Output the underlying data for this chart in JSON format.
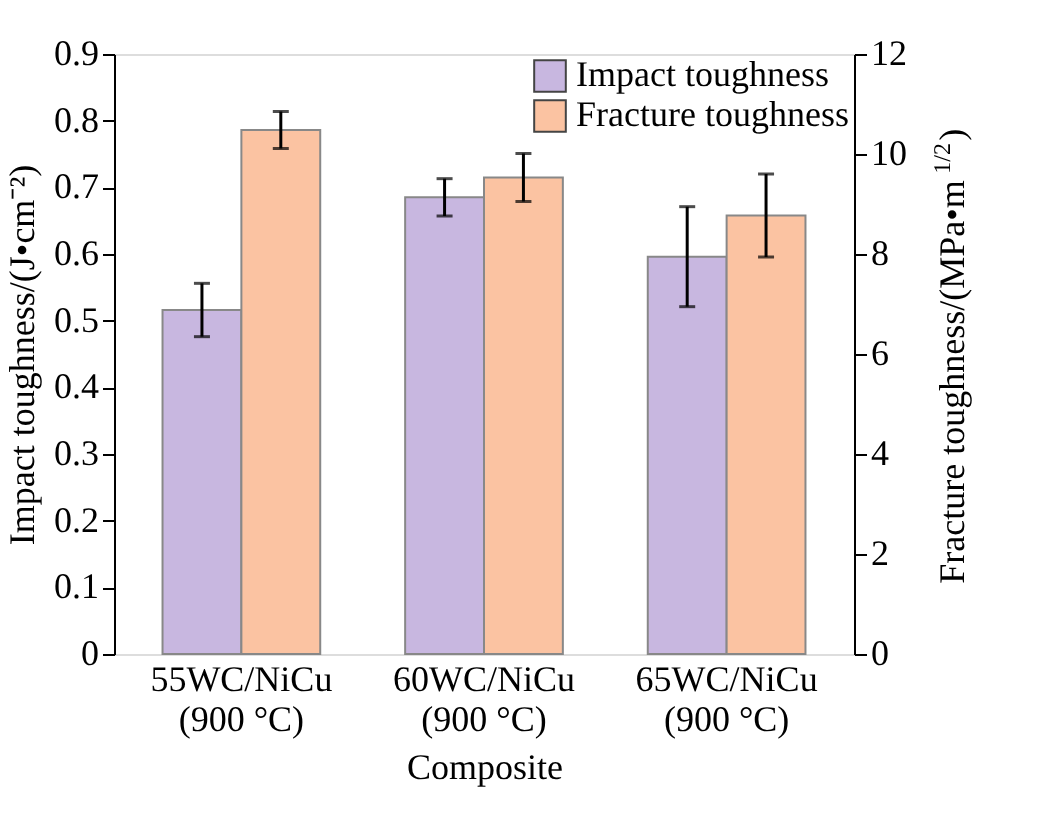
{
  "chart_data": {
    "type": "bar",
    "xlabel": "Composite",
    "ylabel": "Impact toughness/(J•cm⁻²)",
    "y2label": "Fracture toughness/(MPa•m$^{1/2}$)",
    "categories": [
      "55WC/NiCu\n(900 °C)",
      "60WC/NiCu\n(900 °C)",
      "65WC/NiCu\n(900 °C)"
    ],
    "series": [
      {
        "name": "Impact toughness",
        "color": "#c8b7e0",
        "values": [
          0.516,
          0.685,
          0.596
        ],
        "errors": [
          0.04,
          0.028,
          0.075
        ]
      },
      {
        "name": "Fracture toughness",
        "color": "#fbc3a2",
        "axis": "y2",
        "values": [
          10.48,
          9.53,
          8.77
        ],
        "errors": [
          0.37,
          0.48,
          0.83
        ]
      }
    ],
    "ylim": [
      0,
      0.9
    ],
    "yticks": [
      0,
      0.1,
      0.2,
      0.3,
      0.4,
      0.5,
      0.6,
      0.7,
      0.8,
      0.9
    ],
    "y2lim": [
      0,
      12
    ],
    "y2ticks": [
      0,
      2,
      4,
      6,
      8,
      10,
      12
    ],
    "grid": false,
    "legend": "top right"
  }
}
